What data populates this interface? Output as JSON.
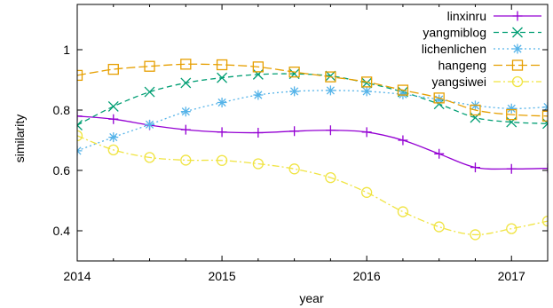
{
  "chart_data": {
    "type": "line",
    "xlabel": "year",
    "ylabel": "similarity",
    "xlim": [
      2014,
      2017.25
    ],
    "ylim": [
      0.3,
      1.15
    ],
    "xticks": [
      2014,
      2015,
      2016,
      2017
    ],
    "yticks": [
      0.4,
      0.6,
      0.8,
      1
    ],
    "x": [
      2014,
      2014.25,
      2014.5,
      2014.75,
      2015,
      2015.25,
      2015.5,
      2015.75,
      2016,
      2016.25,
      2016.5,
      2016.75,
      2017,
      2017.25
    ],
    "legend_position": "top-right",
    "grid": false,
    "series": [
      {
        "name": "linxinru",
        "color": "#9400d3",
        "marker": "plus",
        "dash": "solid",
        "values": [
          0.78,
          0.77,
          0.75,
          0.735,
          0.727,
          0.725,
          0.73,
          0.733,
          0.727,
          0.7,
          0.655,
          0.61,
          0.605,
          0.607
        ]
      },
      {
        "name": "yangmiblog",
        "color": "#009e73",
        "marker": "x",
        "dash": "dash",
        "values": [
          0.75,
          0.812,
          0.86,
          0.89,
          0.907,
          0.918,
          0.92,
          0.913,
          0.89,
          0.86,
          0.82,
          0.775,
          0.76,
          0.755
        ]
      },
      {
        "name": "lichenlichen",
        "color": "#56b4e9",
        "marker": "star",
        "dash": "dot",
        "values": [
          0.665,
          0.71,
          0.752,
          0.795,
          0.825,
          0.85,
          0.862,
          0.865,
          0.862,
          0.852,
          0.835,
          0.815,
          0.805,
          0.81
        ]
      },
      {
        "name": "hangeng",
        "color": "#e69f00",
        "marker": "square",
        "dash": "longdash",
        "values": [
          0.915,
          0.935,
          0.945,
          0.952,
          0.95,
          0.943,
          0.926,
          0.91,
          0.893,
          0.866,
          0.84,
          0.8,
          0.785,
          0.78
        ]
      },
      {
        "name": "yangsiwei",
        "color": "#f0e442",
        "marker": "circle",
        "dash": "dashdot",
        "values": [
          0.715,
          0.668,
          0.643,
          0.634,
          0.633,
          0.622,
          0.605,
          0.576,
          0.527,
          0.463,
          0.413,
          0.387,
          0.407,
          0.432
        ]
      }
    ]
  }
}
